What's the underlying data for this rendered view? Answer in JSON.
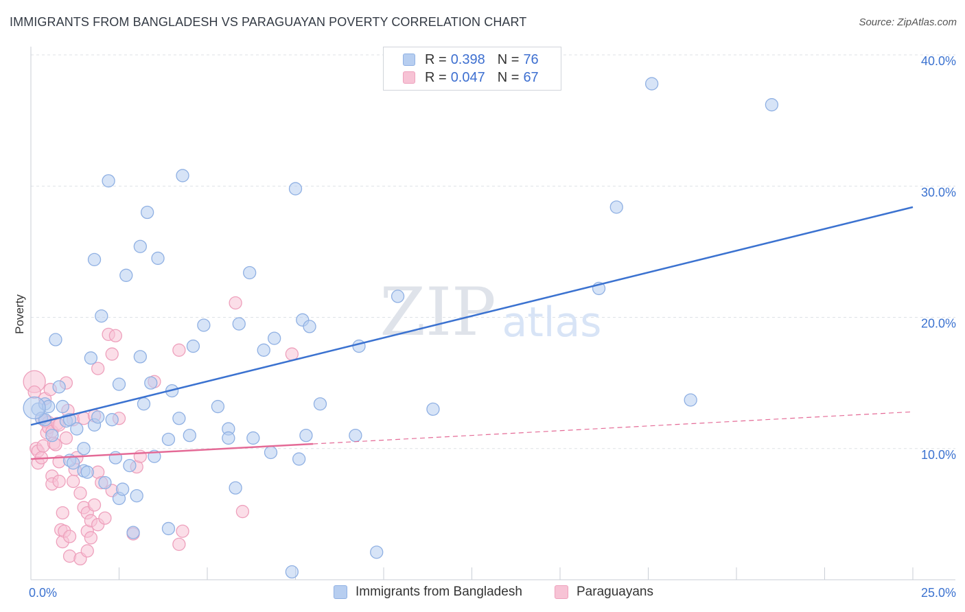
{
  "title": "IMMIGRANTS FROM BANGLADESH VS PARAGUAYAN POVERTY CORRELATION CHART",
  "source": "Source: ZipAtlas.com",
  "watermark": {
    "zip": "ZIP",
    "atlas": "atlas"
  },
  "legend_top": [
    {
      "r_label": "R =",
      "r_value": "0.398",
      "n_label": "N =",
      "n_value": "76"
    },
    {
      "r_label": "R =",
      "r_value": "0.047",
      "n_label": "N =",
      "n_value": "67"
    }
  ],
  "legend_bottom": [
    "Immigrants from Bangladesh",
    "Paraguayans"
  ],
  "colors": {
    "blue": "#3b72d0",
    "blue_fill": "#b7cef0",
    "blue_stroke": "#8fb0e3",
    "pink": "#e46a96",
    "pink_fill": "#f7c3d5",
    "pink_stroke": "#eea0bc",
    "axis_label": "#3b72d0",
    "grid": "#dde1e6"
  },
  "chart_data": {
    "type": "scatter",
    "title": "IMMIGRANTS FROM BANGLADESH VS PARAGUAYAN POVERTY CORRELATION CHART",
    "xlabel": "",
    "ylabel": "Poverty",
    "xlim": [
      0,
      25
    ],
    "ylim": [
      0,
      40
    ],
    "x_tick_labels": [
      "0.0%",
      "25.0%"
    ],
    "y_ticks": [
      10,
      20,
      30,
      40
    ],
    "y_tick_labels": [
      "10.0%",
      "20.0%",
      "30.0%",
      "40.0%"
    ],
    "grid": true,
    "series": [
      {
        "name": "Immigrants from Bangladesh",
        "r": 0.398,
        "n": 76,
        "trend": {
          "x0": 0,
          "y0": 11.8,
          "x1": 25,
          "y1": 28.4,
          "solid_until": 25
        },
        "points": [
          [
            0.2,
            13.0
          ],
          [
            0.4,
            13.4
          ],
          [
            0.5,
            13.2
          ],
          [
            0.3,
            12.3
          ],
          [
            0.4,
            12.2
          ],
          [
            0.6,
            11.0
          ],
          [
            0.7,
            18.3
          ],
          [
            0.8,
            14.7
          ],
          [
            0.9,
            13.2
          ],
          [
            1.0,
            12.1
          ],
          [
            1.1,
            12.2
          ],
          [
            1.1,
            9.1
          ],
          [
            1.2,
            8.9
          ],
          [
            1.3,
            11.5
          ],
          [
            1.5,
            8.3
          ],
          [
            1.5,
            10.0
          ],
          [
            1.6,
            8.2
          ],
          [
            1.7,
            16.9
          ],
          [
            1.8,
            11.8
          ],
          [
            1.8,
            24.4
          ],
          [
            1.9,
            12.4
          ],
          [
            2.0,
            20.1
          ],
          [
            2.1,
            7.4
          ],
          [
            2.2,
            30.4
          ],
          [
            2.3,
            12.2
          ],
          [
            2.4,
            9.3
          ],
          [
            2.5,
            6.2
          ],
          [
            2.5,
            14.9
          ],
          [
            2.6,
            6.9
          ],
          [
            2.7,
            23.2
          ],
          [
            2.8,
            8.7
          ],
          [
            2.9,
            3.6
          ],
          [
            3.0,
            6.4
          ],
          [
            3.1,
            25.4
          ],
          [
            3.1,
            17.0
          ],
          [
            3.2,
            13.4
          ],
          [
            3.3,
            28.0
          ],
          [
            3.4,
            15.0
          ],
          [
            3.5,
            9.4
          ],
          [
            3.6,
            24.5
          ],
          [
            3.9,
            3.9
          ],
          [
            3.9,
            10.7
          ],
          [
            4.0,
            14.4
          ],
          [
            4.2,
            12.3
          ],
          [
            4.3,
            30.8
          ],
          [
            4.5,
            11.0
          ],
          [
            4.6,
            17.8
          ],
          [
            4.9,
            19.4
          ],
          [
            5.3,
            13.2
          ],
          [
            5.6,
            11.5
          ],
          [
            5.6,
            10.8
          ],
          [
            5.8,
            7.0
          ],
          [
            5.9,
            19.5
          ],
          [
            6.2,
            23.4
          ],
          [
            6.3,
            10.8
          ],
          [
            6.6,
            17.5
          ],
          [
            6.8,
            9.7
          ],
          [
            6.9,
            18.4
          ],
          [
            7.4,
            0.6
          ],
          [
            7.5,
            29.8
          ],
          [
            7.6,
            9.2
          ],
          [
            7.7,
            19.8
          ],
          [
            7.8,
            11.0
          ],
          [
            7.9,
            19.3
          ],
          [
            8.2,
            13.4
          ],
          [
            9.2,
            11.0
          ],
          [
            9.3,
            17.8
          ],
          [
            9.8,
            2.1
          ],
          [
            10.4,
            21.6
          ],
          [
            11.4,
            13.0
          ],
          [
            16.1,
            22.2
          ],
          [
            16.6,
            28.4
          ],
          [
            17.6,
            37.8
          ],
          [
            18.7,
            13.7
          ],
          [
            21.0,
            36.2
          ],
          [
            0.1,
            13.1
          ]
        ],
        "big_points": [
          [
            0.1,
            13.1
          ]
        ]
      },
      {
        "name": "Paraguayans",
        "r": 0.047,
        "n": 67,
        "trend": {
          "x0": 0,
          "y0": 9.2,
          "x1": 25,
          "y1": 12.8,
          "solid_until": 8.0
        },
        "points": [
          [
            0.1,
            15.1
          ],
          [
            0.1,
            14.3
          ],
          [
            0.15,
            10.0
          ],
          [
            0.2,
            9.8
          ],
          [
            0.2,
            8.9
          ],
          [
            0.3,
            12.3
          ],
          [
            0.3,
            9.3
          ],
          [
            0.35,
            10.2
          ],
          [
            0.4,
            12.1
          ],
          [
            0.4,
            13.8
          ],
          [
            0.45,
            11.2
          ],
          [
            0.5,
            12.0
          ],
          [
            0.5,
            11.6
          ],
          [
            0.55,
            14.5
          ],
          [
            0.6,
            11.3
          ],
          [
            0.6,
            7.9
          ],
          [
            0.6,
            7.3
          ],
          [
            0.65,
            10.4
          ],
          [
            0.7,
            10.3
          ],
          [
            0.75,
            11.9
          ],
          [
            0.8,
            11.8
          ],
          [
            0.8,
            9.0
          ],
          [
            0.8,
            7.5
          ],
          [
            0.85,
            3.8
          ],
          [
            0.9,
            2.9
          ],
          [
            0.9,
            5.1
          ],
          [
            0.95,
            3.7
          ],
          [
            1.0,
            15.0
          ],
          [
            1.0,
            10.8
          ],
          [
            1.05,
            12.9
          ],
          [
            1.1,
            1.8
          ],
          [
            1.1,
            3.3
          ],
          [
            1.2,
            12.2
          ],
          [
            1.2,
            7.5
          ],
          [
            1.25,
            8.4
          ],
          [
            1.3,
            9.3
          ],
          [
            1.4,
            6.6
          ],
          [
            1.4,
            1.6
          ],
          [
            1.5,
            5.5
          ],
          [
            1.5,
            12.3
          ],
          [
            1.6,
            2.2
          ],
          [
            1.6,
            5.1
          ],
          [
            1.6,
            3.7
          ],
          [
            1.7,
            4.5
          ],
          [
            1.7,
            3.2
          ],
          [
            1.8,
            5.7
          ],
          [
            1.8,
            12.5
          ],
          [
            1.9,
            16.1
          ],
          [
            1.9,
            8.2
          ],
          [
            1.9,
            4.2
          ],
          [
            2.0,
            7.4
          ],
          [
            2.1,
            4.7
          ],
          [
            2.2,
            18.7
          ],
          [
            2.3,
            17.2
          ],
          [
            2.3,
            6.8
          ],
          [
            2.4,
            18.6
          ],
          [
            2.5,
            12.3
          ],
          [
            2.9,
            3.5
          ],
          [
            3.0,
            8.6
          ],
          [
            3.1,
            9.4
          ],
          [
            3.5,
            15.1
          ],
          [
            4.2,
            17.5
          ],
          [
            4.3,
            3.7
          ],
          [
            4.2,
            2.7
          ],
          [
            5.8,
            21.1
          ],
          [
            6.0,
            5.2
          ],
          [
            7.4,
            17.2
          ]
        ],
        "big_points": [
          [
            0.1,
            15.1
          ]
        ]
      }
    ]
  }
}
